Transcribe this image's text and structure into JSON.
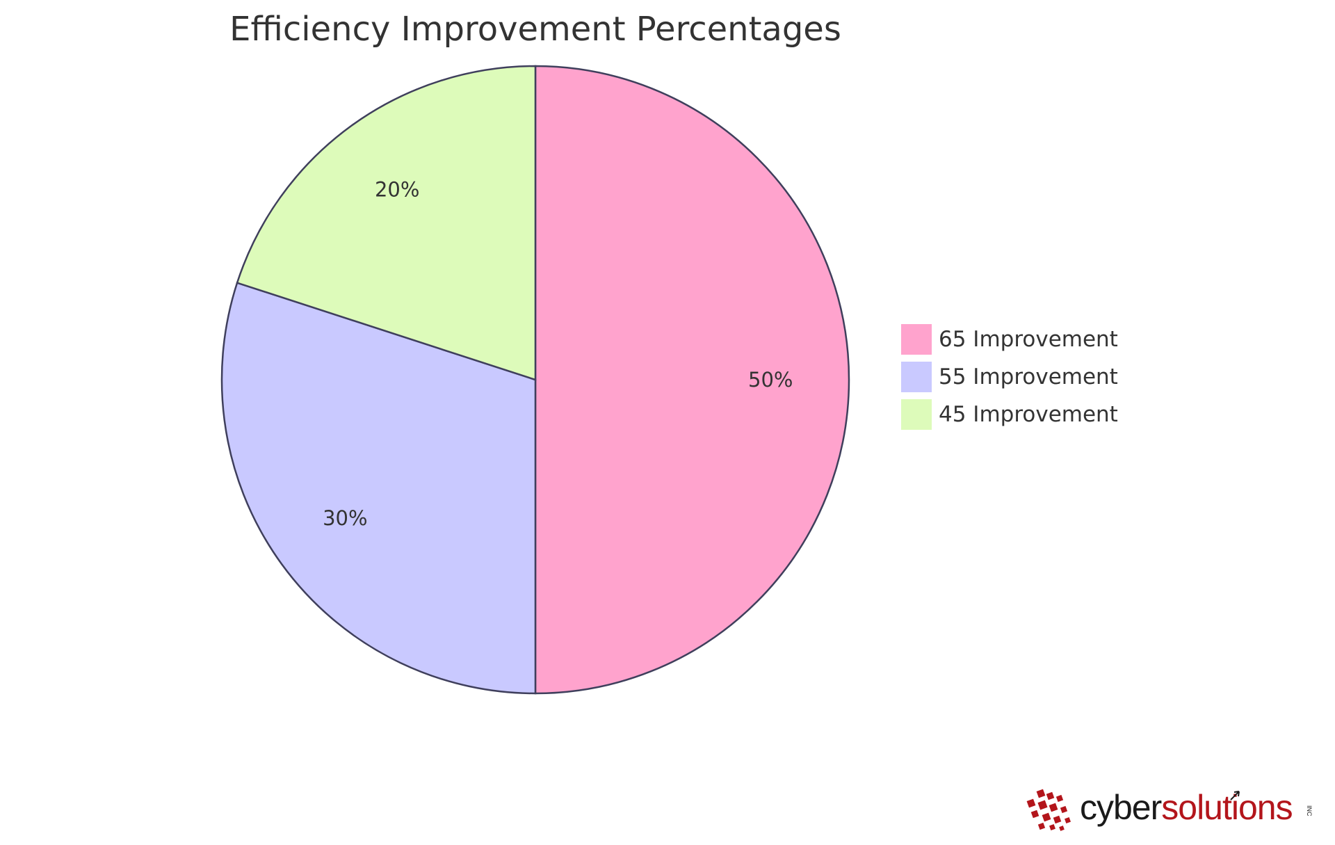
{
  "chart_data": {
    "type": "pie",
    "title": "Efficiency Improvement Percentages",
    "slices": [
      {
        "name": "65 Improvement",
        "value": 50,
        "label": "50%",
        "color": "#ffa3cd"
      },
      {
        "name": "55 Improvement",
        "value": 30,
        "label": "30%",
        "color": "#c9c9ff"
      },
      {
        "name": "45 Improvement",
        "value": 20,
        "label": "20%",
        "color": "#ddfbba"
      }
    ],
    "legend_position": "right",
    "stroke_color": "#3f3f5c"
  },
  "logo": {
    "text_dark": "cyber",
    "text_accent": "solutions",
    "suffix": "INC",
    "dark_color": "#1a1a1a",
    "accent_color": "#b3151b"
  }
}
